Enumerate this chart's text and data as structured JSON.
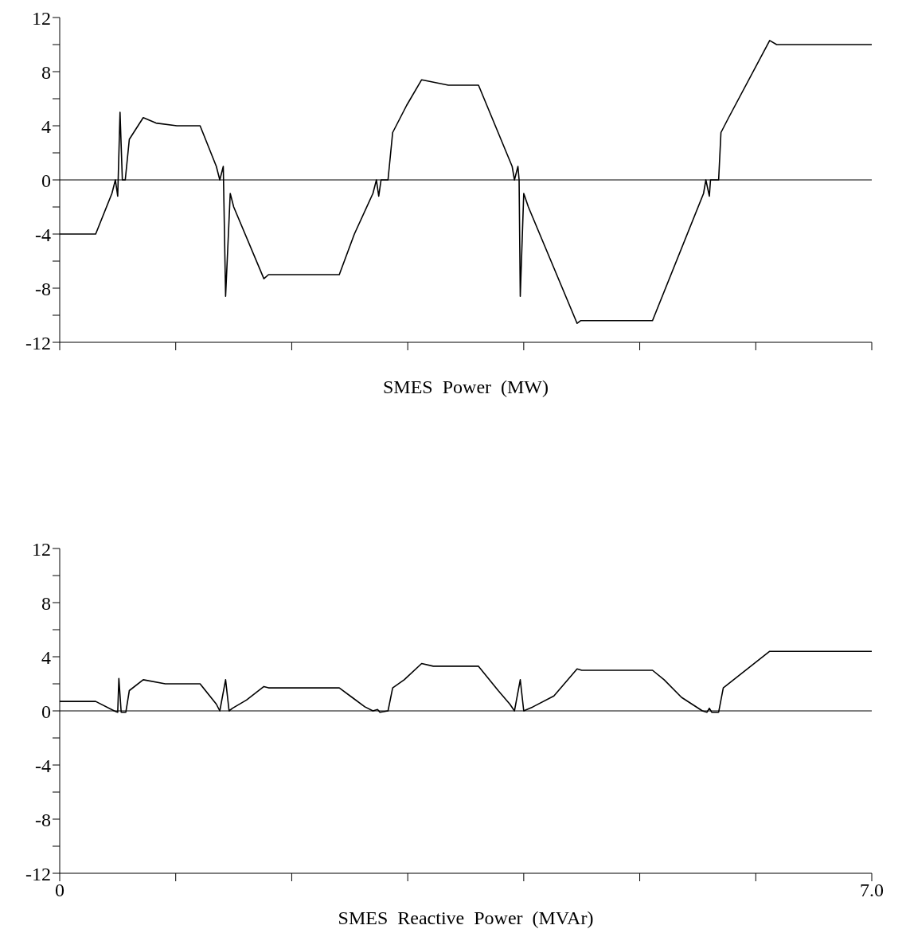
{
  "chart_data": [
    {
      "type": "line",
      "xlabel": "SMES Power (MW)",
      "color": "#000000",
      "tick_labels": "y",
      "marker": "none",
      "xlim": [
        0,
        7
      ],
      "xticks": [
        {
          "value": 0,
          "label": null
        },
        {
          "value": 1,
          "label": null
        },
        {
          "value": 2,
          "label": null
        },
        {
          "value": 3,
          "label": null
        },
        {
          "value": 4,
          "label": null
        },
        {
          "value": 5,
          "label": null
        },
        {
          "value": 6,
          "label": null
        },
        {
          "value": 7,
          "label": null
        }
      ],
      "ylim": [
        -12,
        12
      ],
      "yticks": [
        -12,
        {
          "value": -10,
          "label": null
        },
        -8,
        {
          "value": -6,
          "label": null
        },
        -4,
        {
          "value": -2,
          "label": null
        },
        0,
        {
          "value": 2,
          "label": null
        },
        4,
        {
          "value": 6,
          "label": null
        },
        8,
        {
          "value": 10,
          "label": null
        },
        12
      ],
      "ref_lines": [
        {
          "axis": "y",
          "value": 0
        }
      ],
      "x": [
        0,
        0.31,
        0.45,
        0.48,
        0.5,
        0.52,
        0.54,
        0.565,
        0.6,
        0.72,
        0.83,
        1.01,
        1.21,
        1.35,
        1.38,
        1.41,
        1.43,
        1.47,
        1.5,
        1.76,
        1.8,
        2.41,
        2.54,
        2.7,
        2.73,
        2.75,
        2.77,
        2.83,
        2.87,
        2.99,
        3.12,
        3.35,
        3.61,
        3.9,
        3.92,
        3.95,
        3.96,
        3.97,
        4.0,
        4.04,
        4.46,
        4.49,
        5.11,
        5.55,
        5.57,
        5.6,
        5.61,
        5.68,
        5.7,
        5.76,
        6.12,
        6.18,
        7
      ],
      "values": [
        -4,
        -4,
        -1,
        0,
        -1.2,
        5,
        0,
        0,
        3,
        4.6,
        4.2,
        4,
        4,
        1,
        0,
        1,
        -8.6,
        -1,
        -2,
        -7.3,
        -7,
        -7,
        -4,
        -1,
        0,
        -1.2,
        0,
        0,
        3.5,
        5.5,
        7.4,
        7,
        7,
        1,
        0,
        1,
        0,
        -8.6,
        -1,
        -2,
        -10.6,
        -10.4,
        -10.4,
        -1,
        0,
        -1.2,
        0,
        0,
        3.5,
        4.5,
        10.3,
        10,
        10
      ]
    },
    {
      "type": "line",
      "xlabel": "SMES Reactive Power (MVAr)",
      "color": "#000000",
      "marker": "none",
      "xlim": [
        0,
        7
      ],
      "xticks": [
        {
          "value": 0,
          "label": "0"
        },
        {
          "value": 1,
          "label": null
        },
        {
          "value": 2,
          "label": null
        },
        {
          "value": 3,
          "label": null
        },
        {
          "value": 4,
          "label": null
        },
        {
          "value": 5,
          "label": null
        },
        {
          "value": 6,
          "label": null
        },
        {
          "value": 7,
          "label": "7.0"
        }
      ],
      "ylim": [
        -12,
        12
      ],
      "yticks": [
        -12,
        {
          "value": -10,
          "label": null
        },
        -8,
        {
          "value": -6,
          "label": null
        },
        -4,
        {
          "value": -2,
          "label": null
        },
        0,
        {
          "value": 2,
          "label": null
        },
        4,
        {
          "value": 6,
          "label": null
        },
        8,
        {
          "value": 10,
          "label": null
        },
        12
      ],
      "ref_lines": [
        {
          "axis": "y",
          "value": 0
        }
      ],
      "x": [
        0,
        0.31,
        0.47,
        0.5,
        0.51,
        0.53,
        0.57,
        0.6,
        0.72,
        0.91,
        1.21,
        1.35,
        1.38,
        1.43,
        1.46,
        1.49,
        1.61,
        1.76,
        1.8,
        2.41,
        2.52,
        2.63,
        2.7,
        2.74,
        2.76,
        2.83,
        2.87,
        2.97,
        3.12,
        3.22,
        3.61,
        3.78,
        3.88,
        3.92,
        3.97,
        4.0,
        4.08,
        4.26,
        4.46,
        4.5,
        5.11,
        5.21,
        5.36,
        5.54,
        5.58,
        5.6,
        5.62,
        5.68,
        5.72,
        6.12,
        7
      ],
      "values": [
        0.7,
        0.7,
        0,
        -0.1,
        2.4,
        -0.1,
        -0.1,
        1.5,
        2.3,
        2,
        2,
        0.5,
        0,
        2.3,
        0,
        0.2,
        0.8,
        1.8,
        1.7,
        1.7,
        1,
        0.3,
        0,
        0.1,
        -0.1,
        0,
        1.7,
        2.3,
        3.5,
        3.3,
        3.3,
        1.5,
        0.5,
        0,
        2.3,
        0,
        0.3,
        1.1,
        3.1,
        3,
        3,
        2.3,
        1,
        0,
        -0.1,
        0.2,
        -0.1,
        -0.1,
        1.7,
        4.4,
        4.4
      ]
    }
  ]
}
